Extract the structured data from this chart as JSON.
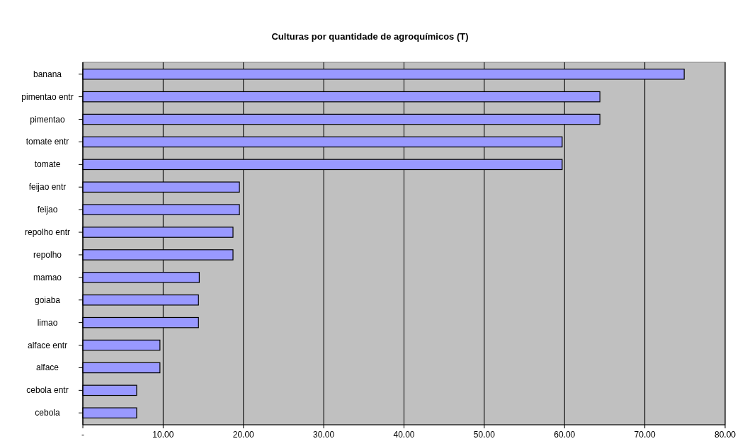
{
  "chart_data": {
    "type": "bar",
    "orientation": "horizontal",
    "title": "Culturas por quantidade de agroquímicos (T)",
    "categories": [
      "banana",
      "pimentao entr",
      "pimentao",
      "tomate entr",
      "tomate",
      "feijao entr",
      "feijao",
      "repolho entr",
      "repolho",
      "mamao",
      "goiaba",
      "limao",
      "alface entr",
      "alface",
      "cebola entr",
      "cebola"
    ],
    "values": [
      74.9,
      64.4,
      64.4,
      59.7,
      59.7,
      19.5,
      19.5,
      18.7,
      18.7,
      14.5,
      14.4,
      14.4,
      9.6,
      9.6,
      6.7,
      6.7
    ],
    "color": "#9999ff",
    "xlim": [
      0,
      80
    ],
    "xticks": [
      {
        "value": 0,
        "label": "-"
      },
      {
        "value": 10,
        "label": "10.00"
      },
      {
        "value": 20,
        "label": "20.00"
      },
      {
        "value": 30,
        "label": "30.00"
      },
      {
        "value": 40,
        "label": "40.00"
      },
      {
        "value": 50,
        "label": "50.00"
      },
      {
        "value": 60,
        "label": "60.00"
      },
      {
        "value": 70,
        "label": "70.00"
      },
      {
        "value": 80,
        "label": "80.00"
      }
    ],
    "grid": "x"
  }
}
